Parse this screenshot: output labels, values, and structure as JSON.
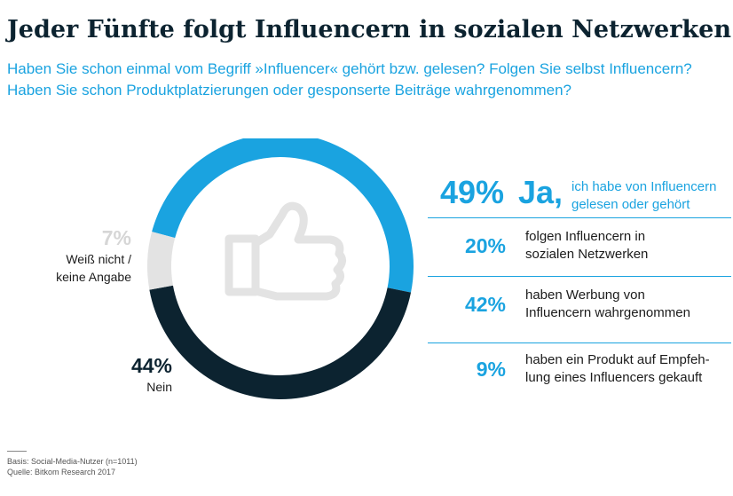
{
  "title": "Jeder Fünfte folgt Influencern in sozialen Netzwerken",
  "subtitle": [
    "Haben Sie schon einmal vom Begriff »Influencer« gehört bzw. gelesen? Folgen Sie selbst Influencern?",
    "Haben Sie schon Produktplatzierungen oder gesponserte Beiträge wahrgenommen?"
  ],
  "chart_data": [
    {
      "type": "pie",
      "categories": [
        "Ja",
        "Nein",
        "Weiß nicht / keine Angabe"
      ],
      "values": [
        49,
        44,
        7
      ],
      "value_labels": [
        "49%",
        "44%",
        "7%"
      ],
      "colors": [
        "#1aa3e0",
        "#0c2330",
        "#e3e3e3"
      ],
      "labels": {
        "ja": {
          "pct": "49%",
          "word": "Ja,",
          "text_lines": [
            "ich habe von Influencern",
            "gelesen oder gehört"
          ]
        },
        "nein": {
          "pct": "44%",
          "text": "Nein"
        },
        "weiss": {
          "pct": "7%",
          "text_lines": [
            "Weiß nicht /",
            "keine Angabe"
          ]
        }
      },
      "center_icon": "thumbs-up-icon"
    },
    {
      "type": "table",
      "rows": [
        {
          "pct": "20%",
          "value": 20,
          "lines": [
            "folgen Influencern in",
            "sozialen Netzwerken"
          ]
        },
        {
          "pct": "42%",
          "value": 42,
          "lines": [
            "haben Werbung von",
            "Influencern wahrgenommen"
          ]
        },
        {
          "pct": "9%",
          "value": 9,
          "lines": [
            "haben ein Produkt auf Empfeh-",
            "lung eines Influencers gekauft"
          ]
        }
      ]
    }
  ],
  "footnote": {
    "basis": "Basis: Social-Media-Nutzer (n=1011)",
    "source": "Quelle: Bitkom Research 2017"
  }
}
